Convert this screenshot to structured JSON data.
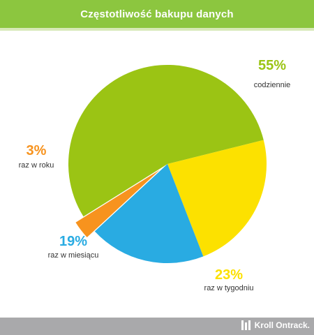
{
  "title": "Częstotliwość bakupu danych",
  "footer": {
    "brand": "Kroll Ontrack."
  },
  "colors": {
    "title_bar": "#8cc63f",
    "footer_bar": "#a9a9ab",
    "text_dark": "#333333"
  },
  "chart_data": {
    "type": "pie",
    "legend": "none",
    "slices": [
      {
        "value": 55,
        "value_label": "55%",
        "name": "codziennie",
        "color": "#9bc414"
      },
      {
        "value": 23,
        "value_label": "23%",
        "name": "raz w tygodniu",
        "color": "#fce100"
      },
      {
        "value": 19,
        "value_label": "19%",
        "name": "raz w miesiącu",
        "color": "#29abe2"
      },
      {
        "value": 3,
        "value_label": "3%",
        "name": "raz w roku",
        "color": "#f7931e"
      }
    ]
  }
}
